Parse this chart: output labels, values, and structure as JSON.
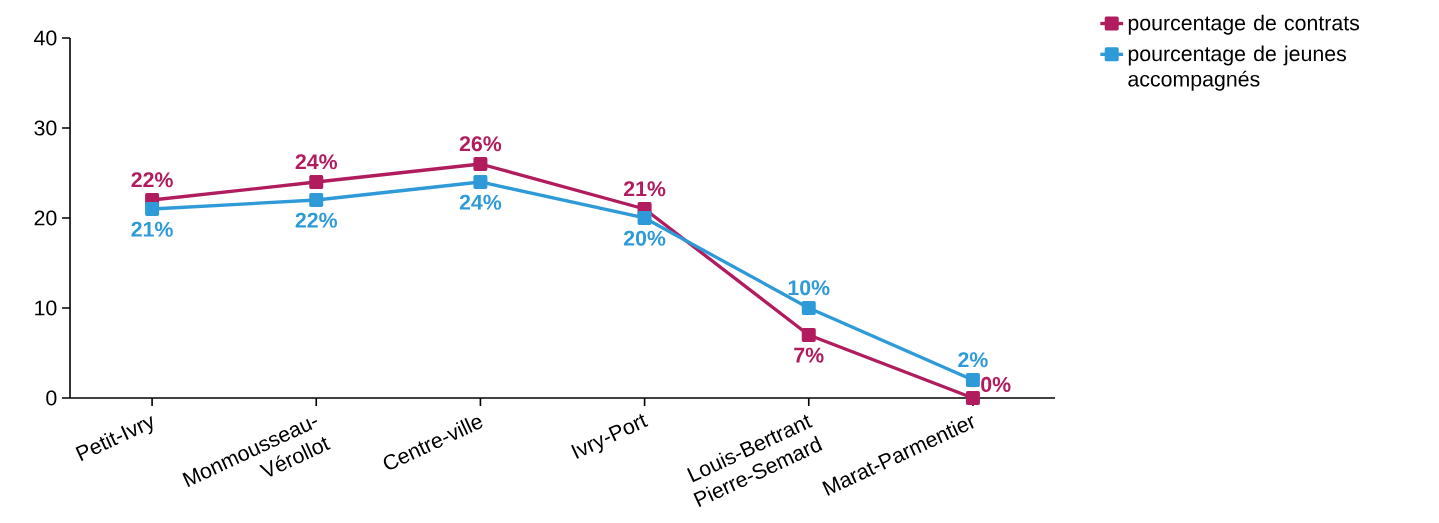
{
  "chart_data": {
    "type": "line",
    "categories": [
      "Petit-Ivry",
      "Monmousseau-Vérollot",
      "Centre-ville",
      "Ivry-Port",
      "Louis-Bertrant Pierre-Semard",
      "Marat-Parmentier"
    ],
    "series": [
      {
        "name": "pourcentage de contrats",
        "color": "#b01c5e",
        "values": [
          22,
          24,
          26,
          21,
          7,
          0
        ],
        "value_labels": [
          "22%",
          "24%",
          "26%",
          "21%",
          "7%",
          "0%"
        ]
      },
      {
        "name": "pourcentage de jeunes accompagnés",
        "color": "#2e9ad8",
        "values": [
          21,
          22,
          24,
          20,
          10,
          2
        ],
        "value_labels": [
          "21%",
          "22%",
          "24%",
          "20%",
          "10%",
          "2%"
        ]
      }
    ],
    "ylim": [
      0,
      40
    ],
    "yticks": [
      0,
      10,
      20,
      30,
      40
    ],
    "grid": false,
    "legend": "top right",
    "marker": "square",
    "line_style": "solid"
  }
}
